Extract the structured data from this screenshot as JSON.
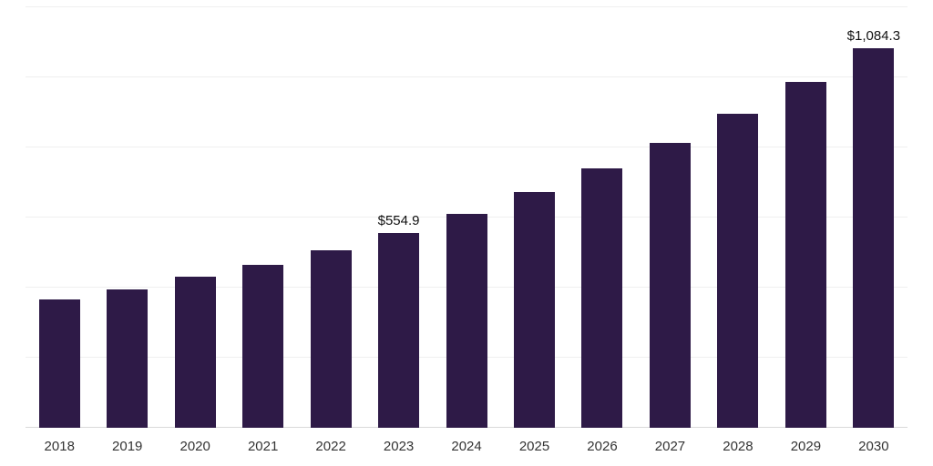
{
  "chart_data": {
    "type": "bar",
    "title": "",
    "xlabel": "",
    "ylabel": "",
    "categories": [
      "2018",
      "2019",
      "2020",
      "2021",
      "2022",
      "2023",
      "2024",
      "2025",
      "2026",
      "2027",
      "2028",
      "2029",
      "2030"
    ],
    "values": [
      365.0,
      395.0,
      430.5,
      464.0,
      507.0,
      554.9,
      610.7,
      672.1,
      739.7,
      814.1,
      895.9,
      985.9,
      1084.3
    ],
    "data_labels": [
      "",
      "",
      "",
      "",
      "",
      "$554.9",
      "",
      "",
      "",
      "",
      "",
      "",
      "$1,084.3"
    ],
    "ylim": [
      0,
      1200
    ],
    "grid_step": 200,
    "grid": true,
    "legend": "none",
    "bar_color": "#2e1a47",
    "background": "#ffffff",
    "gridline_color": "#efefef",
    "baseline_color": "#d9d9d9",
    "data_label_color": "#111111",
    "axis_text_color": "#333333"
  }
}
